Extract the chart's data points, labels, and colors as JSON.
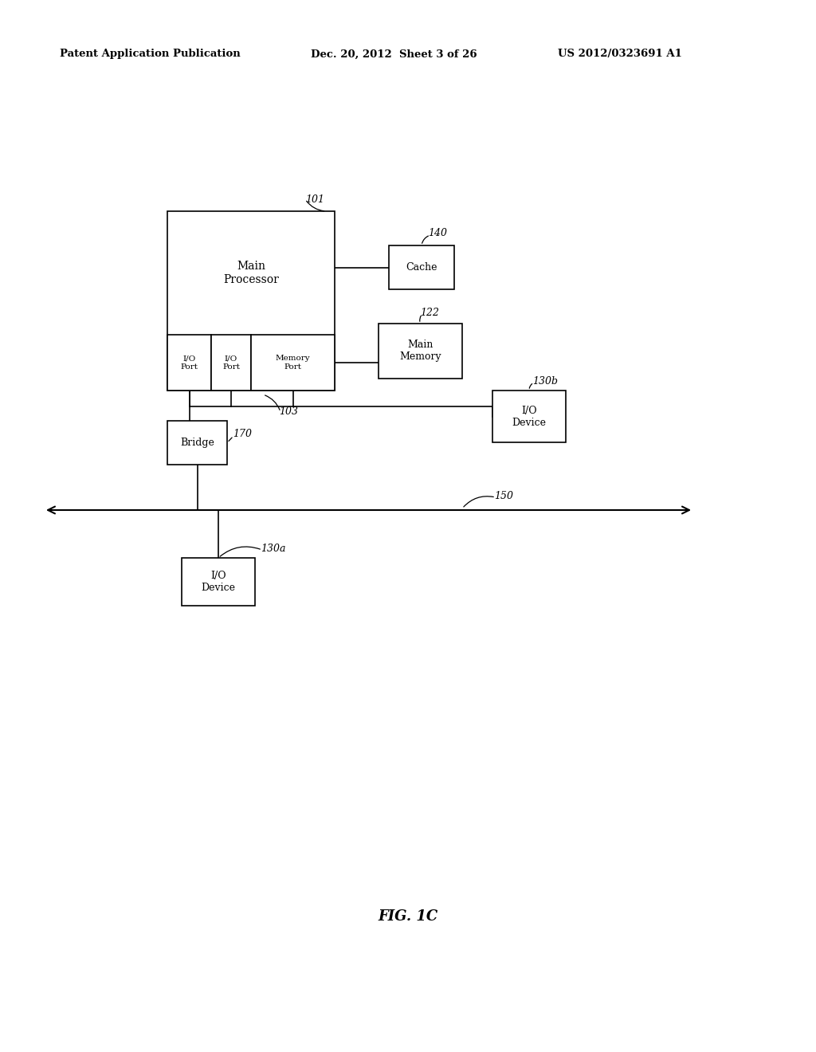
{
  "background_color": "#ffffff",
  "header_left": "Patent Application Publication",
  "header_center": "Dec. 20, 2012  Sheet 3 of 26",
  "header_right": "US 2012/0323691 A1",
  "figure_label": "FIG. 1C",
  "lw": 1.2
}
